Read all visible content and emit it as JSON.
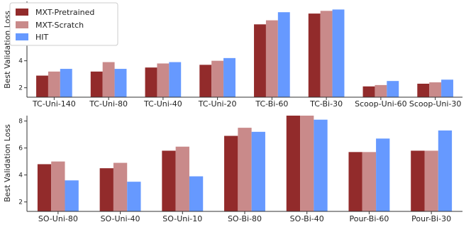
{
  "colors": {
    "MXT-Pretrained": "#922b2b",
    "MXT-Scratch": "#c98a8a",
    "HIT": "#6699ff"
  },
  "chart_data": [
    {
      "type": "bar",
      "title": "",
      "xlabel": "",
      "ylabel": "Best Validation Loss",
      "ylim": [
        1.3,
        8.4
      ],
      "yticks": [
        "2",
        "4",
        "6",
        "8"
      ],
      "legend_position": "top-left",
      "categories": [
        "TC-Uni-140",
        "TC-Uni-80",
        "TC-Uni-40",
        "TC-Uni-20",
        "TC-Bi-60",
        "TC-Bi-30",
        "Scoop-Uni-60",
        "Scoop-Uni-30"
      ],
      "series": [
        {
          "name": "MXT-Pretrained",
          "values": [
            2.9,
            3.2,
            3.5,
            3.7,
            6.7,
            7.5,
            2.1,
            2.3
          ]
        },
        {
          "name": "MXT-Scratch",
          "values": [
            3.2,
            3.9,
            3.8,
            4.0,
            7.0,
            7.7,
            2.2,
            2.4
          ]
        },
        {
          "name": "HIT",
          "values": [
            3.4,
            3.4,
            3.9,
            4.2,
            7.6,
            7.8,
            2.5,
            2.6
          ]
        }
      ]
    },
    {
      "type": "bar",
      "title": "",
      "xlabel": "",
      "ylabel": "Best Validation Loss",
      "ylim": [
        1.3,
        8.4
      ],
      "yticks": [
        "2",
        "4",
        "6",
        "8"
      ],
      "categories": [
        "SO-Uni-80",
        "SO-Uni-40",
        "SO-Uni-10",
        "SO-Bi-80",
        "SO-Bi-40",
        "Pour-Bi-60",
        "Pour-Bi-30"
      ],
      "series": [
        {
          "name": "MXT-Pretrained",
          "values": [
            4.8,
            4.5,
            5.8,
            6.9,
            8.4,
            5.7,
            5.8
          ]
        },
        {
          "name": "MXT-Scratch",
          "values": [
            5.0,
            4.9,
            6.1,
            7.5,
            8.4,
            5.7,
            5.8
          ]
        },
        {
          "name": "HIT",
          "values": [
            3.6,
            3.5,
            3.9,
            7.2,
            8.1,
            6.7,
            7.3
          ]
        }
      ]
    }
  ]
}
